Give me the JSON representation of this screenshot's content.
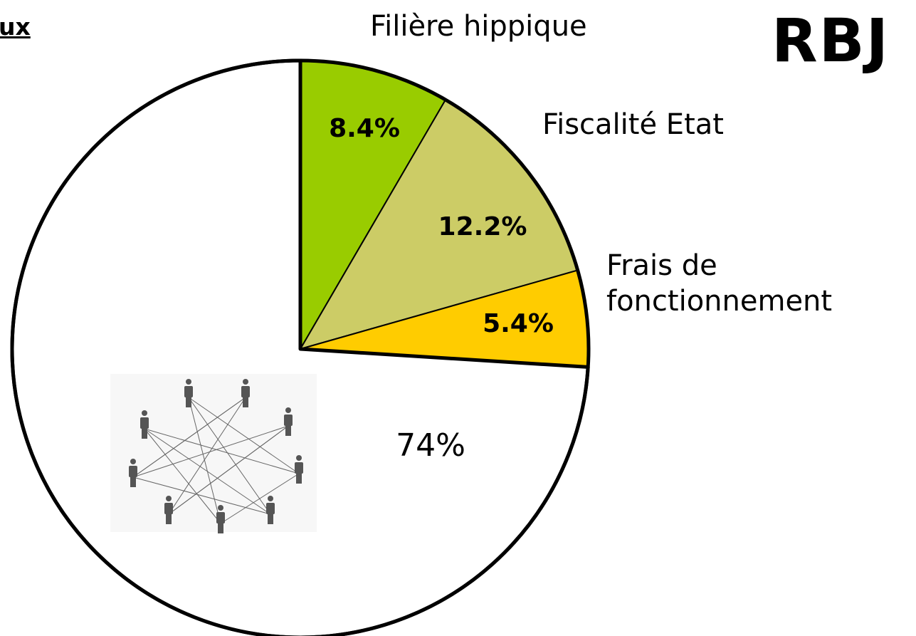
{
  "chart_data": {
    "type": "pie",
    "corner_text": "ux",
    "logo": "RBJ",
    "categories": [
      "Filière hippique",
      "Fiscalité Etat",
      "Frais de fonctionnement",
      null
    ],
    "values": [
      8.4,
      12.2,
      5.4,
      74
    ],
    "value_labels": [
      "8.4%",
      "12.2%",
      "5.4%",
      "74%"
    ],
    "colors": [
      "#99cc00",
      "#cccc66",
      "#ffcc00",
      "#ffffff"
    ]
  }
}
